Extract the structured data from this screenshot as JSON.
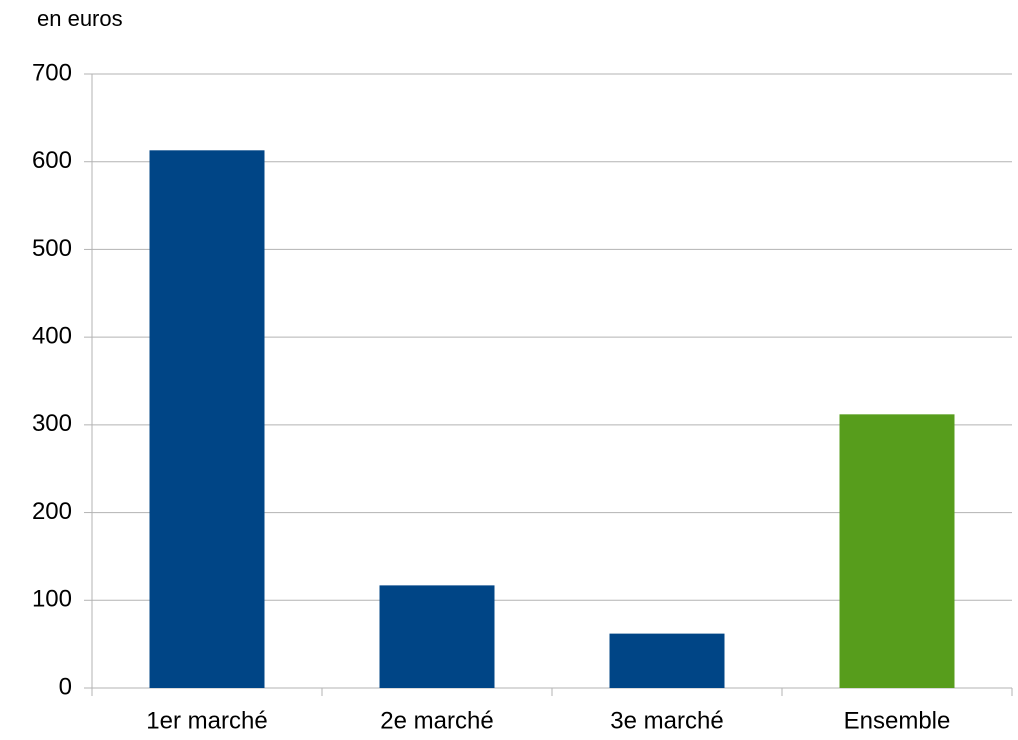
{
  "chart_data": {
    "type": "bar",
    "y_axis_label": "en euros",
    "categories": [
      "1er marché",
      "2e marché",
      "3e marché",
      "Ensemble"
    ],
    "values": [
      613,
      117,
      62,
      312
    ],
    "colors": [
      "#004586",
      "#004586",
      "#004586",
      "#579d1c"
    ],
    "ylim": [
      0,
      700
    ],
    "yticks": [
      0,
      100,
      200,
      300,
      400,
      500,
      600,
      700
    ],
    "grid": true
  }
}
